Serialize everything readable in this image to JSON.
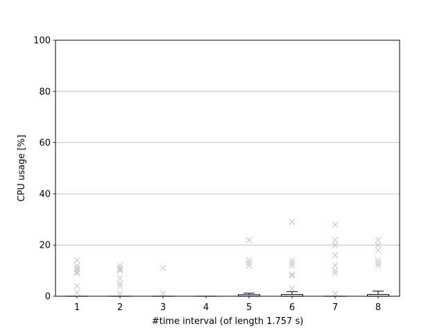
{
  "chart_data": {
    "type": "box",
    "xlabel": "#time interval (of length 1.757 s)",
    "ylabel": "CPU usage [%]",
    "ylim": [
      0,
      100
    ],
    "yticks": [
      0,
      20,
      40,
      60,
      80,
      100
    ],
    "xlim": [
      0.5,
      8.5
    ],
    "categories": [
      "1",
      "2",
      "3",
      "4",
      "5",
      "6",
      "7",
      "8"
    ],
    "grid": "y-major",
    "colors": {
      "median": "#0000ff",
      "box_edge": "#000000",
      "box_fill": "#ffffff",
      "outlier": "#c8c8c8",
      "grid": "#b0b0b0"
    },
    "boxes": [
      {
        "label": "1",
        "q1": 0,
        "median": 0,
        "q3": 0,
        "whisker_low": 0,
        "whisker_high": 0,
        "outliers": [
          14,
          12,
          11,
          10.5,
          9.5,
          9,
          4,
          1.5
        ]
      },
      {
        "label": "2",
        "q1": 0,
        "median": 0,
        "q3": 0,
        "whisker_low": 0,
        "whisker_high": 0,
        "outliers": [
          12,
          11,
          10.5,
          10,
          7,
          5,
          4,
          1
        ]
      },
      {
        "label": "3",
        "q1": 0,
        "median": 0,
        "q3": 0,
        "whisker_low": 0,
        "whisker_high": 0,
        "outliers": [
          11,
          1
        ]
      },
      {
        "label": "4",
        "q1": 0,
        "median": 0,
        "q3": 0,
        "whisker_low": 0,
        "whisker_high": 0,
        "outliers": []
      },
      {
        "label": "5",
        "q1": 0,
        "median": 0,
        "q3": 0.6,
        "whisker_low": 0,
        "whisker_high": 1.2,
        "outliers": [
          22,
          14,
          13,
          12
        ]
      },
      {
        "label": "6",
        "q1": 0,
        "median": 0,
        "q3": 0.7,
        "whisker_low": 0,
        "whisker_high": 1.8,
        "outliers": [
          29,
          14,
          13,
          12,
          8.5,
          8,
          3
        ]
      },
      {
        "label": "7",
        "q1": 0,
        "median": 0,
        "q3": 0,
        "whisker_low": 0,
        "whisker_high": 0,
        "outliers": [
          28,
          22,
          20,
          16,
          12,
          10,
          9,
          1
        ]
      },
      {
        "label": "8",
        "q1": 0,
        "median": 0,
        "q3": 0.7,
        "whisker_low": 0,
        "whisker_high": 2,
        "outliers": [
          22,
          20,
          18,
          14,
          13,
          12
        ]
      }
    ]
  }
}
